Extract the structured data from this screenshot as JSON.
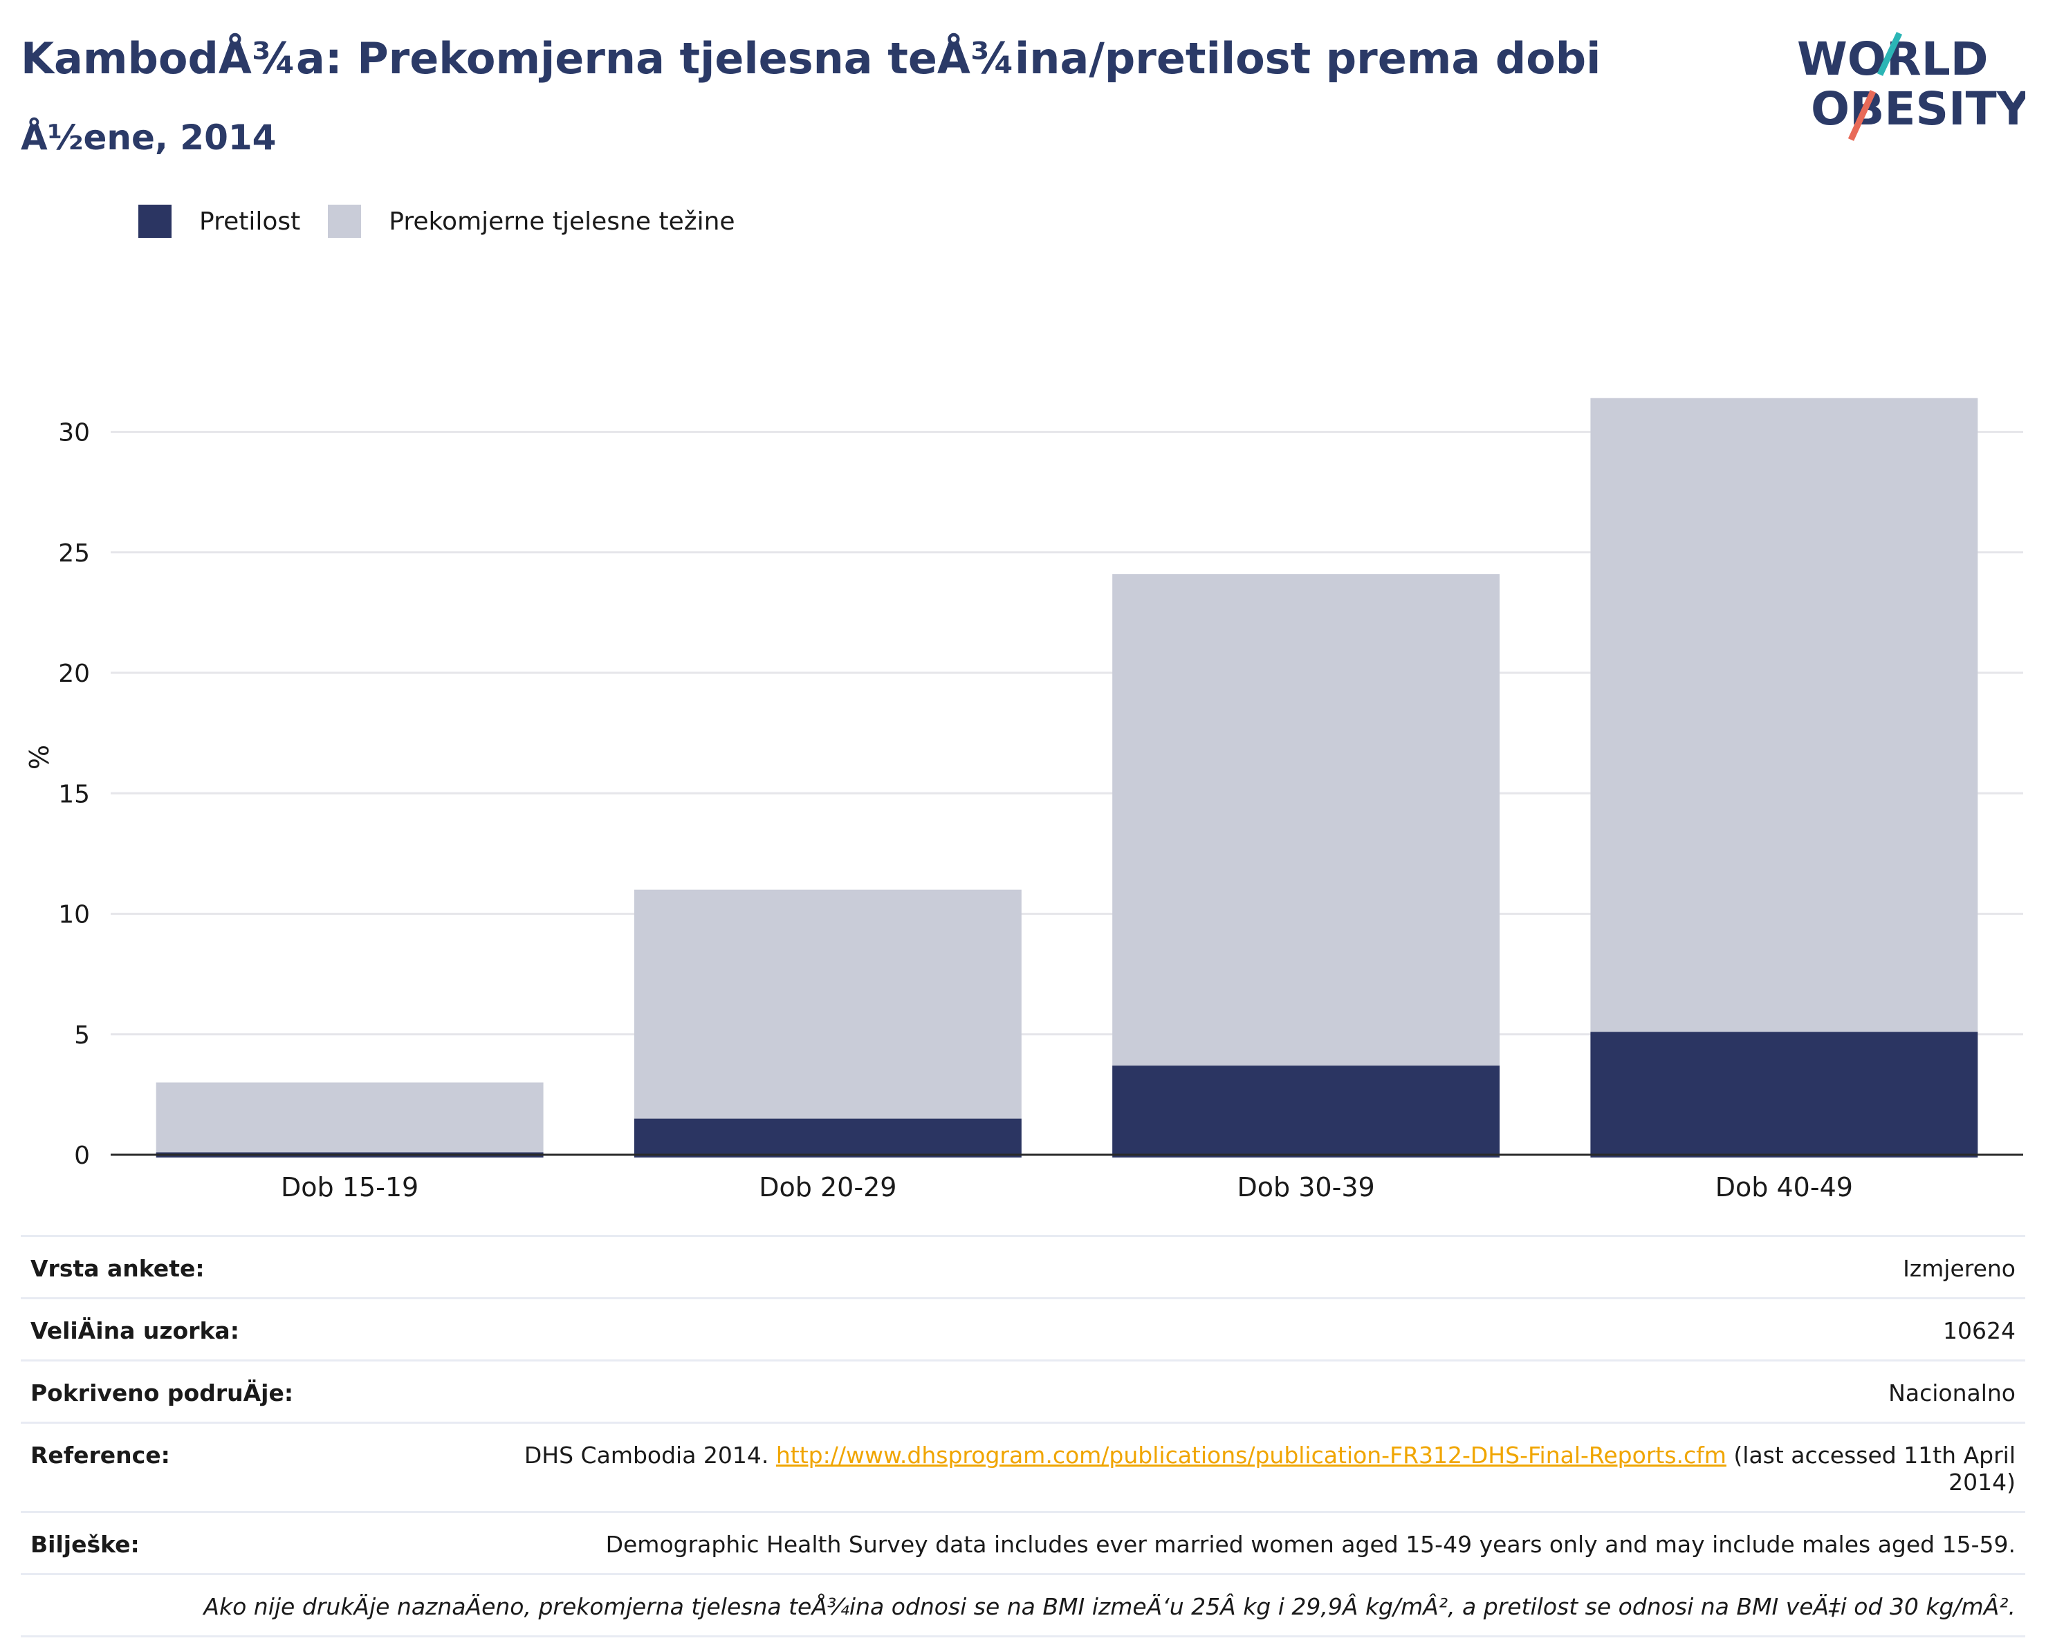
{
  "header": {
    "title": "KambodÅ¾a: Prekomjerna tjelesna teÅ¾ina/pretilost prema dobi",
    "subtitle": "Å½ene, 2014",
    "logo_line1": "WORLD",
    "logo_line2": "OBESITY"
  },
  "colors": {
    "obesity": "#2b3562",
    "overweight": "#c9ccd8",
    "title": "#2b3a67",
    "link": "#f0a500"
  },
  "chart_data": {
    "type": "bar",
    "stacked": false,
    "overlay": true,
    "categories": [
      "Dob 15-19",
      "Dob 20-29",
      "Dob 30-39",
      "Dob 40-49"
    ],
    "series": [
      {
        "name": "Pretilost",
        "values": [
          0.1,
          1.5,
          3.7,
          5.1
        ]
      },
      {
        "name": "Prekomjerne tjelesne težine",
        "values": [
          3.0,
          11.0,
          24.1,
          31.4
        ]
      }
    ],
    "ylabel": "%",
    "xlabel": "",
    "yticks": [
      0,
      5,
      10,
      15,
      20,
      25,
      30
    ],
    "ylim": [
      0,
      33
    ],
    "grid": true,
    "legend": "top-left"
  },
  "table": {
    "rows": [
      {
        "key": "Vrsta ankete:",
        "value": "Izmjereno"
      },
      {
        "key": "VeliÄ\u001fina uzorka:",
        "value": "10624"
      },
      {
        "key": "Pokriveno podruÄ\u001fje:",
        "value": "Nacionalno"
      },
      {
        "key": "Reference:",
        "value_prefix": "DHS Cambodia 2014. ",
        "link": "http://www.dhsprogram.com/publications/publication-FR312-DHS-Final-Reports.cfm",
        "value_suffix": " (last accessed 11th April 2014)"
      },
      {
        "key": "Bilješke:",
        "value": "Demographic Health Survey data includes ever married women aged 15-49 years only and may include males aged 15-59."
      }
    ],
    "note": "Ako nije drukÄ\u001fje naznaÄ\u001feno, prekomjerna tjelesna teÅ¾ina odnosi se na BMI izmeÄ‘u 25Â kg i 29,9Â kg/mÂ², a pretilost se odnosi na BMI veÄ‡i od 30 kg/mÂ²."
  }
}
